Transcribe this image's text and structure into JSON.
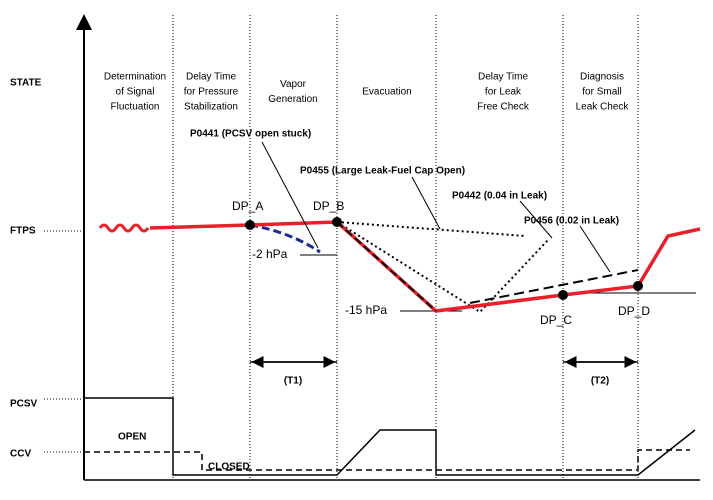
{
  "rows": {
    "state": "STATE",
    "ftps": "FTPS",
    "pcsv": "PCSV",
    "ccv": "CCV"
  },
  "phases": [
    [
      "Determination",
      "of Signal",
      "Fluctuation"
    ],
    [
      "Delay Time",
      "for Pressure",
      "Stabilization"
    ],
    [
      "Vapor",
      "Generation"
    ],
    [
      "Evacuation"
    ],
    [
      "Delay Time",
      "for Leak",
      "Free Check"
    ],
    [
      "Diagnosis",
      "for Small",
      "Leak Check"
    ]
  ],
  "faults": {
    "p0441": "P0441 (PCSV open stuck)",
    "p0455": "P0455 (Large Leak-Fuel Cap Open)",
    "p0442": "P0442 (0.04 in Leak)",
    "p0456": "P0456 (0.02 in Leak)"
  },
  "points": {
    "dp_a": "DP_A",
    "dp_b": "DP_B",
    "dp_c": "DP_C",
    "dp_d": "DP_D"
  },
  "pressures": {
    "minus2": "-2 hPa",
    "minus15": "-15 hPa"
  },
  "intervals": {
    "t1": "(T1)",
    "t2": "(T2)"
  },
  "valve_states": {
    "open": "OPEN",
    "closed": "CLOSED"
  }
}
